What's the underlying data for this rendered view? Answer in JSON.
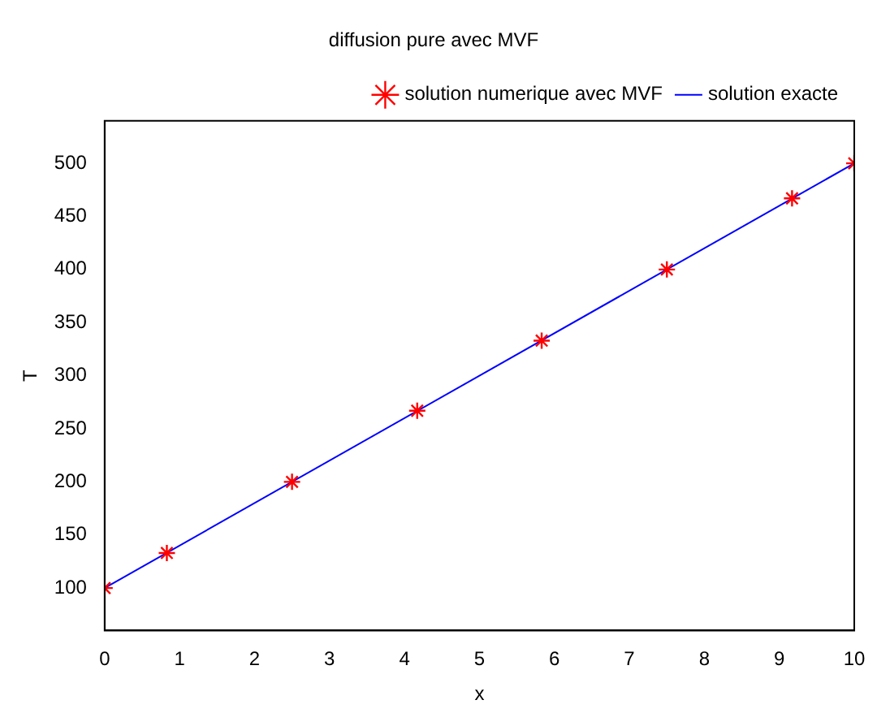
{
  "chart_data": {
    "type": "scatter",
    "title": "diffusion pure avec MVF",
    "xlabel": "x",
    "ylabel": "T",
    "xlim": [
      0,
      10
    ],
    "xticks": [
      0,
      1,
      2,
      3,
      4,
      5,
      6,
      7,
      8,
      9,
      10
    ],
    "ylim": [
      60,
      540
    ],
    "yticks": [
      100,
      150,
      200,
      250,
      300,
      350,
      400,
      450,
      500
    ],
    "grid": false,
    "legend": "top right",
    "series": [
      {
        "name": "solution numerique avec MVF",
        "color": "#ff0000",
        "marker": "cross",
        "x": [
          0,
          0.83,
          2.5,
          4.17,
          5.83,
          7.5,
          9.17,
          10
        ],
        "values": [
          100,
          133,
          200,
          267,
          333,
          400,
          467,
          500
        ]
      },
      {
        "name": "solution exacte",
        "type": "line",
        "color": "#0000ff",
        "marker": "none",
        "line_style": "solid",
        "x": [
          0,
          10
        ],
        "values": [
          100,
          500
        ]
      }
    ]
  }
}
